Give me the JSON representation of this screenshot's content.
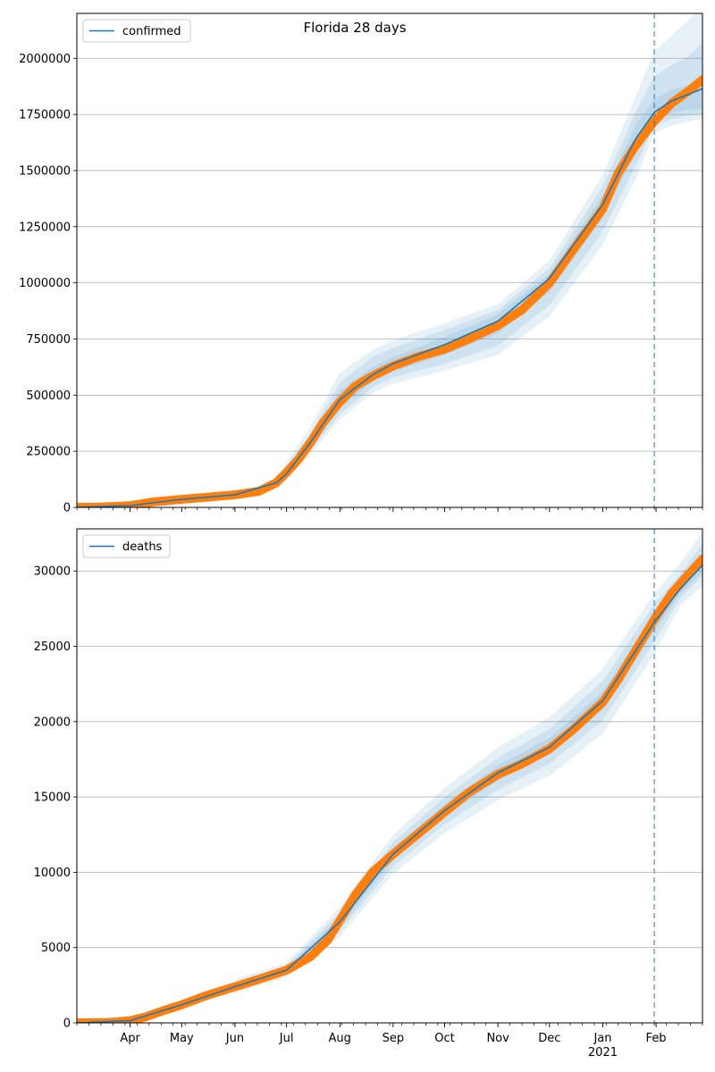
{
  "title": "Florida 28 days",
  "colors": {
    "model": "#1f77b4",
    "observed": "#ff7f0e",
    "band": "#1f77b4",
    "grid": "#b0b0b0",
    "forecast_line": "#1f77b4"
  },
  "chart_data": [
    {
      "type": "line",
      "legend": "confirmed",
      "legend_placement": "top-left",
      "grid": "horizontal",
      "date_range": [
        "2020-03-01",
        "2021-02-28"
      ],
      "forecast_start": "2021-01-31",
      "ylim": [
        0,
        2200000
      ],
      "yticks": [
        0,
        250000,
        500000,
        750000,
        1000000,
        1250000,
        1500000,
        1750000,
        2000000
      ],
      "ytick_labels": [
        "0",
        "250000",
        "500000",
        "750000",
        "1000000",
        "1250000",
        "1500000",
        "1750000",
        "2000000"
      ],
      "observed": {
        "x": [
          "2020-03-01",
          "2020-03-15",
          "2020-04-01",
          "2020-04-15",
          "2020-05-01",
          "2020-05-15",
          "2020-06-01",
          "2020-06-15",
          "2020-06-25",
          "2020-07-01",
          "2020-07-08",
          "2020-07-15",
          "2020-07-22",
          "2020-08-01",
          "2020-08-10",
          "2020-08-20",
          "2020-09-01",
          "2020-09-15",
          "2020-10-01",
          "2020-10-15",
          "2020-11-01",
          "2020-11-15",
          "2020-12-01",
          "2020-12-15",
          "2021-01-01",
          "2021-01-10",
          "2021-01-20",
          "2021-01-31",
          "2021-02-10",
          "2021-02-20",
          "2021-02-28"
        ],
        "y": [
          500,
          1500,
          8000,
          25000,
          36000,
          45000,
          56000,
          72000,
          110000,
          155000,
          215000,
          290000,
          375000,
          470000,
          540000,
          585000,
          630000,
          670000,
          705000,
          750000,
          810000,
          880000,
          1000000,
          1150000,
          1330000,
          1490000,
          1610000,
          1720000,
          1800000,
          1855000,
          1905000
        ]
      },
      "model": {
        "x": [
          "2020-03-01",
          "2020-04-01",
          "2020-05-01",
          "2020-06-01",
          "2020-06-25",
          "2020-07-01",
          "2020-07-15",
          "2020-08-01",
          "2020-08-20",
          "2020-09-01",
          "2020-10-01",
          "2020-11-01",
          "2020-12-01",
          "2021-01-01",
          "2021-01-20",
          "2021-01-31",
          "2021-02-10",
          "2021-02-20",
          "2021-02-28"
        ],
        "y": [
          500,
          8000,
          36000,
          56000,
          110000,
          150000,
          290000,
          480000,
          590000,
          640000,
          725000,
          830000,
          1020000,
          1350000,
          1640000,
          1760000,
          1810000,
          1840000,
          1865000
        ]
      },
      "bands": [
        {
          "x": [
            "2020-06-25",
            "2020-07-15",
            "2020-08-01",
            "2020-08-20",
            "2020-09-01",
            "2020-10-01",
            "2020-11-01",
            "2020-12-01",
            "2021-01-01",
            "2021-01-20",
            "2021-01-31",
            "2021-02-10",
            "2021-02-20",
            "2021-02-28"
          ],
          "lower": [
            95000,
            240000,
            390000,
            510000,
            550000,
            610000,
            680000,
            850000,
            1170000,
            1460000,
            1670000,
            1700000,
            1720000,
            1730000
          ],
          "upper": [
            135000,
            360000,
            600000,
            700000,
            745000,
            820000,
            905000,
            1100000,
            1480000,
            1830000,
            2030000,
            2100000,
            2170000,
            2230000
          ]
        },
        {
          "x": [
            "2020-06-25",
            "2020-07-15",
            "2020-08-01",
            "2020-08-20",
            "2020-09-01",
            "2020-10-01",
            "2020-11-01",
            "2020-12-01",
            "2021-01-01",
            "2021-01-20",
            "2021-01-31",
            "2021-02-10",
            "2021-02-20",
            "2021-02-28"
          ],
          "lower": [
            100000,
            255000,
            415000,
            535000,
            580000,
            640000,
            720000,
            900000,
            1230000,
            1520000,
            1700000,
            1730000,
            1745000,
            1750000
          ],
          "upper": [
            125000,
            330000,
            555000,
            670000,
            710000,
            790000,
            880000,
            1065000,
            1430000,
            1760000,
            1920000,
            1970000,
            2010000,
            2070000
          ]
        },
        {
          "x": [
            "2020-06-25",
            "2020-07-15",
            "2020-08-01",
            "2020-08-20",
            "2020-09-01",
            "2020-10-01",
            "2020-11-01",
            "2020-12-01",
            "2021-01-01",
            "2021-01-20",
            "2021-01-31",
            "2021-02-10",
            "2021-02-20",
            "2021-02-28"
          ],
          "lower": [
            104000,
            268000,
            440000,
            560000,
            605000,
            680000,
            775000,
            960000,
            1290000,
            1580000,
            1730000,
            1760000,
            1770000,
            1775000
          ],
          "upper": [
            118000,
            310000,
            520000,
            625000,
            670000,
            760000,
            860000,
            1040000,
            1390000,
            1700000,
            1820000,
            1860000,
            1880000,
            1900000
          ]
        }
      ]
    },
    {
      "type": "line",
      "legend": "deaths",
      "legend_placement": "top-left",
      "grid": "horizontal",
      "date_range": [
        "2020-03-01",
        "2021-02-28"
      ],
      "forecast_start": "2021-01-31",
      "ylim": [
        0,
        32800
      ],
      "yticks": [
        0,
        5000,
        10000,
        15000,
        20000,
        25000,
        30000
      ],
      "ytick_labels": [
        "0",
        "5000",
        "10000",
        "15000",
        "20000",
        "25000",
        "30000"
      ],
      "xtick_labels": [
        {
          "date": "2020-04-01",
          "label": "Apr"
        },
        {
          "date": "2020-05-01",
          "label": "May"
        },
        {
          "date": "2020-06-01",
          "label": "Jun"
        },
        {
          "date": "2020-07-01",
          "label": "Jul"
        },
        {
          "date": "2020-08-01",
          "label": "Aug"
        },
        {
          "date": "2020-09-01",
          "label": "Sep"
        },
        {
          "date": "2020-10-01",
          "label": "Oct"
        },
        {
          "date": "2020-11-01",
          "label": "Nov"
        },
        {
          "date": "2020-12-01",
          "label": "Dec"
        },
        {
          "date": "2021-01-01",
          "label": "Jan",
          "sub": "2021"
        },
        {
          "date": "2021-02-01",
          "label": "Feb"
        }
      ],
      "observed": {
        "x": [
          "2020-03-01",
          "2020-03-20",
          "2020-04-01",
          "2020-04-10",
          "2020-04-20",
          "2020-05-01",
          "2020-05-15",
          "2020-06-01",
          "2020-06-15",
          "2020-07-01",
          "2020-07-15",
          "2020-07-25",
          "2020-08-01",
          "2020-08-10",
          "2020-08-20",
          "2020-09-01",
          "2020-09-15",
          "2020-10-01",
          "2020-10-15",
          "2020-11-01",
          "2020-11-15",
          "2020-12-01",
          "2020-12-15",
          "2021-01-01",
          "2021-01-10",
          "2021-01-20",
          "2021-01-31",
          "2021-02-10",
          "2021-02-20",
          "2021-02-28"
        ],
        "y": [
          0,
          30,
          150,
          400,
          800,
          1200,
          1800,
          2400,
          2900,
          3500,
          4400,
          5500,
          6800,
          8500,
          10000,
          11200,
          12500,
          14000,
          15300,
          16500,
          17200,
          18200,
          19500,
          21300,
          22800,
          24700,
          26800,
          28500,
          29800,
          30800
        ]
      },
      "model": {
        "x": [
          "2020-03-01",
          "2020-04-01",
          "2020-05-01",
          "2020-06-01",
          "2020-07-01",
          "2020-08-01",
          "2020-09-01",
          "2020-10-01",
          "2020-11-01",
          "2020-12-01",
          "2021-01-01",
          "2021-01-31",
          "2021-02-15",
          "2021-02-28"
        ],
        "y": [
          0,
          150,
          1200,
          2400,
          3500,
          6700,
          11200,
          14100,
          16600,
          18300,
          21400,
          26600,
          28800,
          30400
        ]
      },
      "bands": [
        {
          "x": [
            "2020-06-01",
            "2020-07-01",
            "2020-08-01",
            "2020-09-01",
            "2020-10-01",
            "2020-11-01",
            "2020-12-01",
            "2021-01-01",
            "2021-01-31",
            "2021-02-15",
            "2021-02-28"
          ],
          "lower": [
            2000,
            3000,
            5700,
            9900,
            12600,
            14800,
            16400,
            19200,
            24500,
            27700,
            29000
          ],
          "upper": [
            2900,
            4000,
            7700,
            12500,
            15600,
            18300,
            20300,
            23500,
            28500,
            30500,
            32600
          ]
        },
        {
          "x": [
            "2020-06-01",
            "2020-07-01",
            "2020-08-01",
            "2020-09-01",
            "2020-10-01",
            "2020-11-01",
            "2020-12-01",
            "2021-01-01",
            "2021-01-31",
            "2021-02-15",
            "2021-02-28"
          ],
          "lower": [
            2150,
            3200,
            6100,
            10400,
            13200,
            15500,
            17200,
            20100,
            25300,
            28200,
            29700
          ],
          "upper": [
            2700,
            3800,
            7300,
            12000,
            15000,
            17600,
            19500,
            22700,
            27800,
            29800,
            31800
          ]
        },
        {
          "x": [
            "2020-06-01",
            "2020-07-01",
            "2020-08-01",
            "2020-09-01",
            "2020-10-01",
            "2020-11-01",
            "2020-12-01",
            "2021-01-01",
            "2021-01-31",
            "2021-02-15",
            "2021-02-28"
          ],
          "lower": [
            2250,
            3350,
            6400,
            10800,
            13700,
            16100,
            17800,
            20800,
            26000,
            28500,
            30000
          ],
          "upper": [
            2550,
            3650,
            7000,
            11600,
            14500,
            17100,
            18900,
            22000,
            27200,
            29300,
            31000
          ]
        }
      ]
    }
  ]
}
